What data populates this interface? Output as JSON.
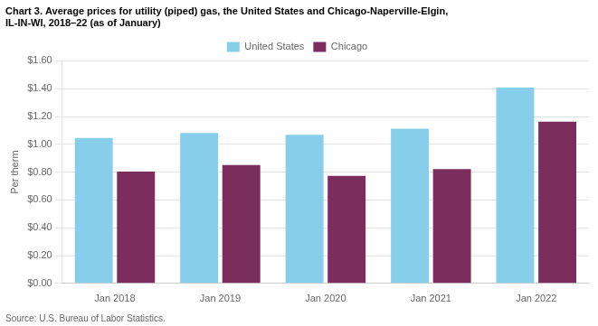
{
  "chart_data": {
    "type": "bar",
    "title": [
      "Chart 3. Average prices for utility (piped) gas, the United States and Chicago-Naperville-Elgin,",
      "IL-IN-WI, 2018–22 (as of January)"
    ],
    "ylabel": "Per therm",
    "source": "Source: U.S. Bureau of Labor Statistics.",
    "categories": [
      "Jan 2018",
      "Jan 2019",
      "Jan 2020",
      "Jan 2021",
      "Jan 2022"
    ],
    "series": [
      {
        "name": "United States",
        "color": "#87CEEB",
        "values": [
          1.046,
          1.082,
          1.068,
          1.112,
          1.408
        ]
      },
      {
        "name": "Chicago",
        "color": "#7B2D5E",
        "values": [
          0.804,
          0.851,
          0.773,
          0.822,
          1.163
        ]
      }
    ],
    "ylim": [
      0.0,
      1.6
    ],
    "yticks": [
      {
        "value": 0.0,
        "label": "$0.00"
      },
      {
        "value": 0.2,
        "label": "$0.20"
      },
      {
        "value": 0.4,
        "label": "$0.40"
      },
      {
        "value": 0.6,
        "label": "$0.60"
      },
      {
        "value": 0.8,
        "label": "$0.80"
      },
      {
        "value": 1.0,
        "label": "$1.00"
      },
      {
        "value": 1.2,
        "label": "$1.20"
      },
      {
        "value": 1.4,
        "label": "$1.40"
      },
      {
        "value": 1.6,
        "label": "$1.60"
      }
    ],
    "grid": true,
    "legend": "top"
  }
}
